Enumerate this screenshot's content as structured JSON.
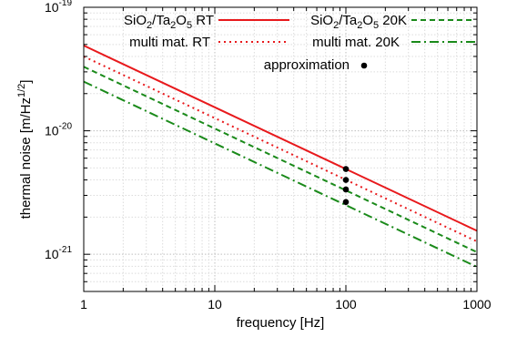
{
  "chart_data": {
    "type": "line",
    "xlabel": "frequency [Hz]",
    "ylabel_parts": [
      "thermal noise [m/Hz",
      "1/2",
      "]"
    ],
    "x_scale": "log",
    "y_scale": "log",
    "xlim": [
      1,
      1000
    ],
    "ylim": [
      5e-22,
      1e-19
    ],
    "grid": true,
    "legend_placement": "top",
    "x_ticks": [
      {
        "value": 1,
        "label": "1"
      },
      {
        "value": 10,
        "label": "10"
      },
      {
        "value": 100,
        "label": "100"
      },
      {
        "value": 1000,
        "label": "1000"
      }
    ],
    "y_ticks": [
      {
        "value": 1e-21,
        "base": "10",
        "exp": "-21"
      },
      {
        "value": 1e-20,
        "base": "10",
        "exp": "-20"
      },
      {
        "value": 1e-19,
        "base": "10",
        "exp": "-19"
      }
    ],
    "series": [
      {
        "name_parts": [
          [
            "SiO",
            "n"
          ],
          [
            "2",
            "sub"
          ],
          [
            "/Ta",
            "n"
          ],
          [
            "2",
            "sub"
          ],
          [
            "O",
            "n"
          ],
          [
            "5",
            "sub"
          ],
          [
            " RT",
            "n"
          ]
        ],
        "style": "solid",
        "color": "#e8191c",
        "x": [
          1,
          1000
        ],
        "y": [
          4.9e-20,
          1.55e-21
        ]
      },
      {
        "name_parts": [
          [
            "SiO",
            "n"
          ],
          [
            "2",
            "sub"
          ],
          [
            "/Ta",
            "n"
          ],
          [
            "2",
            "sub"
          ],
          [
            "O",
            "n"
          ],
          [
            "5",
            "sub"
          ],
          [
            " 20K",
            "n"
          ]
        ],
        "style": "dashed",
        "color": "#1a8a1a",
        "x": [
          1,
          1000
        ],
        "y": [
          3.3e-20,
          1.04e-21
        ]
      },
      {
        "name_parts": [
          [
            "multi mat. RT",
            "n"
          ]
        ],
        "style": "dotted",
        "color": "#e8191c",
        "x": [
          1,
          1000
        ],
        "y": [
          4e-20,
          1.27e-21
        ]
      },
      {
        "name_parts": [
          [
            "multi mat. 20K",
            "n"
          ]
        ],
        "style": "dashdot",
        "color": "#1a8a1a",
        "x": [
          1,
          1000
        ],
        "y": [
          2.5e-20,
          7.9e-22
        ]
      },
      {
        "name_parts": [
          [
            "approximation",
            "n"
          ]
        ],
        "style": "points",
        "color": "#000000",
        "x": [
          100,
          100,
          100,
          100
        ],
        "y": [
          4.9e-21,
          4e-21,
          3.35e-21,
          2.65e-21
        ]
      }
    ]
  }
}
